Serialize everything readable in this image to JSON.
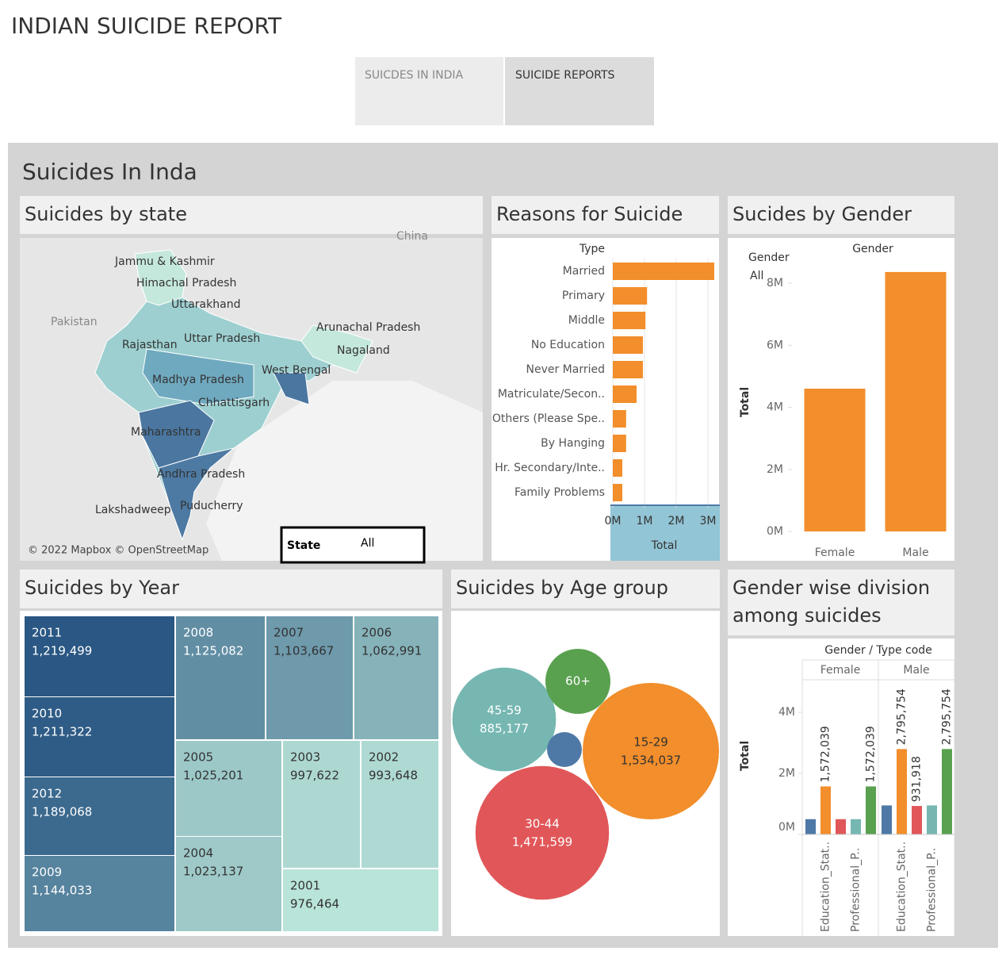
{
  "title": "INDIAN SUICIDE REPORT",
  "tabs": [
    "SUICDES IN INDIA",
    "SUICIDE REPORTS"
  ],
  "dashboard_title": "Suicides In Inda",
  "chart_data": [
    {
      "type": "map",
      "title": "Suicides by state",
      "states": [
        "Jammu & Kashmir",
        "Himachal Pradesh",
        "Uttarakhand",
        "Rajasthan",
        "Uttar Pradesh",
        "Arunachal Pradesh",
        "Nagaland",
        "West Bengal",
        "Madhya Pradesh",
        "Chhattisgarh",
        "Maharashtra",
        "Andhra Pradesh",
        "Puducherry",
        "Lakshadweep"
      ],
      "map_labels": [
        "Pakistan",
        "China"
      ],
      "attribution": "© 2022 Mapbox © OpenStreetMap",
      "filter": {
        "label": "State",
        "value": "All"
      }
    },
    {
      "type": "hbar",
      "title": "Reasons for Suicide",
      "y_label": "Type",
      "x_label": "Total",
      "categories": [
        "Married",
        "Primary",
        "Middle",
        "No Education",
        "Never Married",
        "Matriculate/Secon..",
        "Others (Please Spe..",
        "By Hanging",
        "Hr. Secondary/Inte..",
        "Family Problems"
      ],
      "values": [
        3200000,
        1080000,
        1030000,
        950000,
        950000,
        750000,
        420000,
        420000,
        300000,
        300000
      ],
      "color": "#f28e2b",
      "xlim": [
        0,
        3300000
      ],
      "xticks": [
        {
          "value": 0,
          "label": "0M"
        },
        {
          "value": 1000000,
          "label": "1M"
        },
        {
          "value": 2000000,
          "label": "2M"
        },
        {
          "value": 3000000,
          "label": "3M"
        }
      ]
    },
    {
      "type": "bar",
      "title": "Sucides by Gender",
      "legend_title": "Gender",
      "legend_value": "All",
      "x_label": "Gender",
      "y_label": "Total",
      "categories": [
        "Female",
        "Male"
      ],
      "values": [
        4600000,
        8360000
      ],
      "color": "#f28e2b",
      "ylim": [
        0,
        8700000
      ],
      "yticks": [
        {
          "value": 0,
          "label": "0M"
        },
        {
          "value": 2000000,
          "label": "2M"
        },
        {
          "value": 4000000,
          "label": "4M"
        },
        {
          "value": 6000000,
          "label": "6M"
        },
        {
          "value": 8000000,
          "label": "8M"
        }
      ]
    },
    {
      "type": "treemap",
      "title": "Suicides by Year",
      "categories": [
        "2011",
        "2010",
        "2012",
        "2009",
        "2008",
        "2007",
        "2006",
        "2005",
        "2004",
        "2003",
        "2002",
        "2001"
      ],
      "values": [
        1219499,
        1211322,
        1189068,
        1144033,
        1125082,
        1103667,
        1062991,
        1025201,
        1023137,
        997622,
        993648,
        976464
      ],
      "value_labels": [
        "1,219,499",
        "1,211,322",
        "1,189,068",
        "1,144,033",
        "1,125,082",
        "1,103,667",
        "1,062,991",
        "1,025,201",
        "1,023,137",
        "997,622",
        "993,648",
        "976,464"
      ],
      "color_range": [
        "#b9e4d9",
        "#2a5783"
      ]
    },
    {
      "type": "bubble",
      "title": "Suicides by Age group",
      "categories": [
        "45-59",
        "60+",
        "15-29",
        "30-44",
        null
      ],
      "values": [
        885177,
        349000,
        1534037,
        1471599,
        100000
      ],
      "value_labels": [
        "885,177",
        null,
        "1,534,037",
        "1,471,599",
        null
      ],
      "colors": [
        "#76b7b2",
        "#59a14f",
        "#f28e2b",
        "#e15759",
        "#4e79a7"
      ]
    },
    {
      "type": "grouped_bar",
      "title": "Gender wise division among suicides",
      "header": "Gender / Type code",
      "y_label": "Total",
      "categories": [
        null,
        "Education_Stat..",
        null,
        "Professional_P..",
        null
      ],
      "colors": [
        "#4e79a7",
        "#f28e2b",
        "#e15759",
        "#76b7b2",
        "#59a14f"
      ],
      "series": [
        {
          "name": "Female",
          "values": [
            500000,
            1572039,
            500000,
            500000,
            1572039
          ],
          "value_labels": [
            null,
            "1,572,039",
            null,
            null,
            "1,572,039"
          ]
        },
        {
          "name": "Male",
          "values": [
            950000,
            2795754,
            931918,
            950000,
            2795754
          ],
          "value_labels": [
            null,
            "2,795,754",
            "931,918",
            null,
            "2,795,754"
          ]
        }
      ],
      "ylim": [
        0,
        4900000
      ],
      "yticks": [
        {
          "value": 0,
          "label": "0M"
        },
        {
          "value": 2000000,
          "label": "2M"
        },
        {
          "value": 4000000,
          "label": "4M"
        }
      ]
    }
  ]
}
